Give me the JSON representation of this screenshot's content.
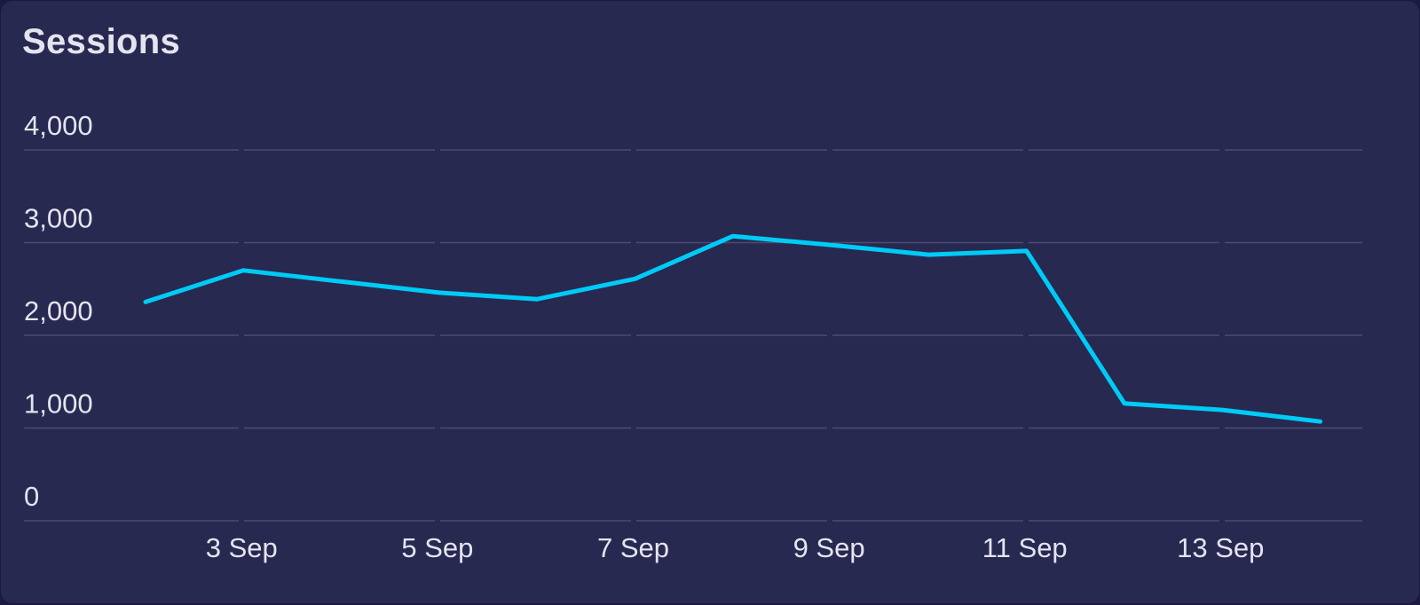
{
  "card": {
    "title": "Sessions"
  },
  "colors": {
    "background": "#272951",
    "line": "#00cbf7",
    "gridline": "#4a4c72",
    "text": "#e4e4ee"
  },
  "chart_data": {
    "type": "line",
    "title": "Sessions",
    "xlabel": "",
    "ylabel": "",
    "ylim": [
      0,
      4000
    ],
    "yticks": [
      0,
      1000,
      2000,
      3000,
      4000
    ],
    "ytick_labels": [
      "0",
      "1,000",
      "2,000",
      "3,000",
      "4,000"
    ],
    "xtick_labels": [
      "3 Sep",
      "5 Sep",
      "7 Sep",
      "9 Sep",
      "11 Sep",
      "13 Sep"
    ],
    "grid": true,
    "legend": null,
    "categories": [
      "2 Sep",
      "3 Sep",
      "4 Sep",
      "5 Sep",
      "6 Sep",
      "7 Sep",
      "8 Sep",
      "9 Sep",
      "10 Sep",
      "11 Sep",
      "12 Sep",
      "13 Sep",
      "14 Sep"
    ],
    "series": [
      {
        "name": "Sessions",
        "values": [
          2360,
          2700,
          2580,
          2460,
          2390,
          2610,
          3070,
          2975,
          2870,
          2910,
          1265,
          1195,
          1070
        ]
      }
    ]
  }
}
